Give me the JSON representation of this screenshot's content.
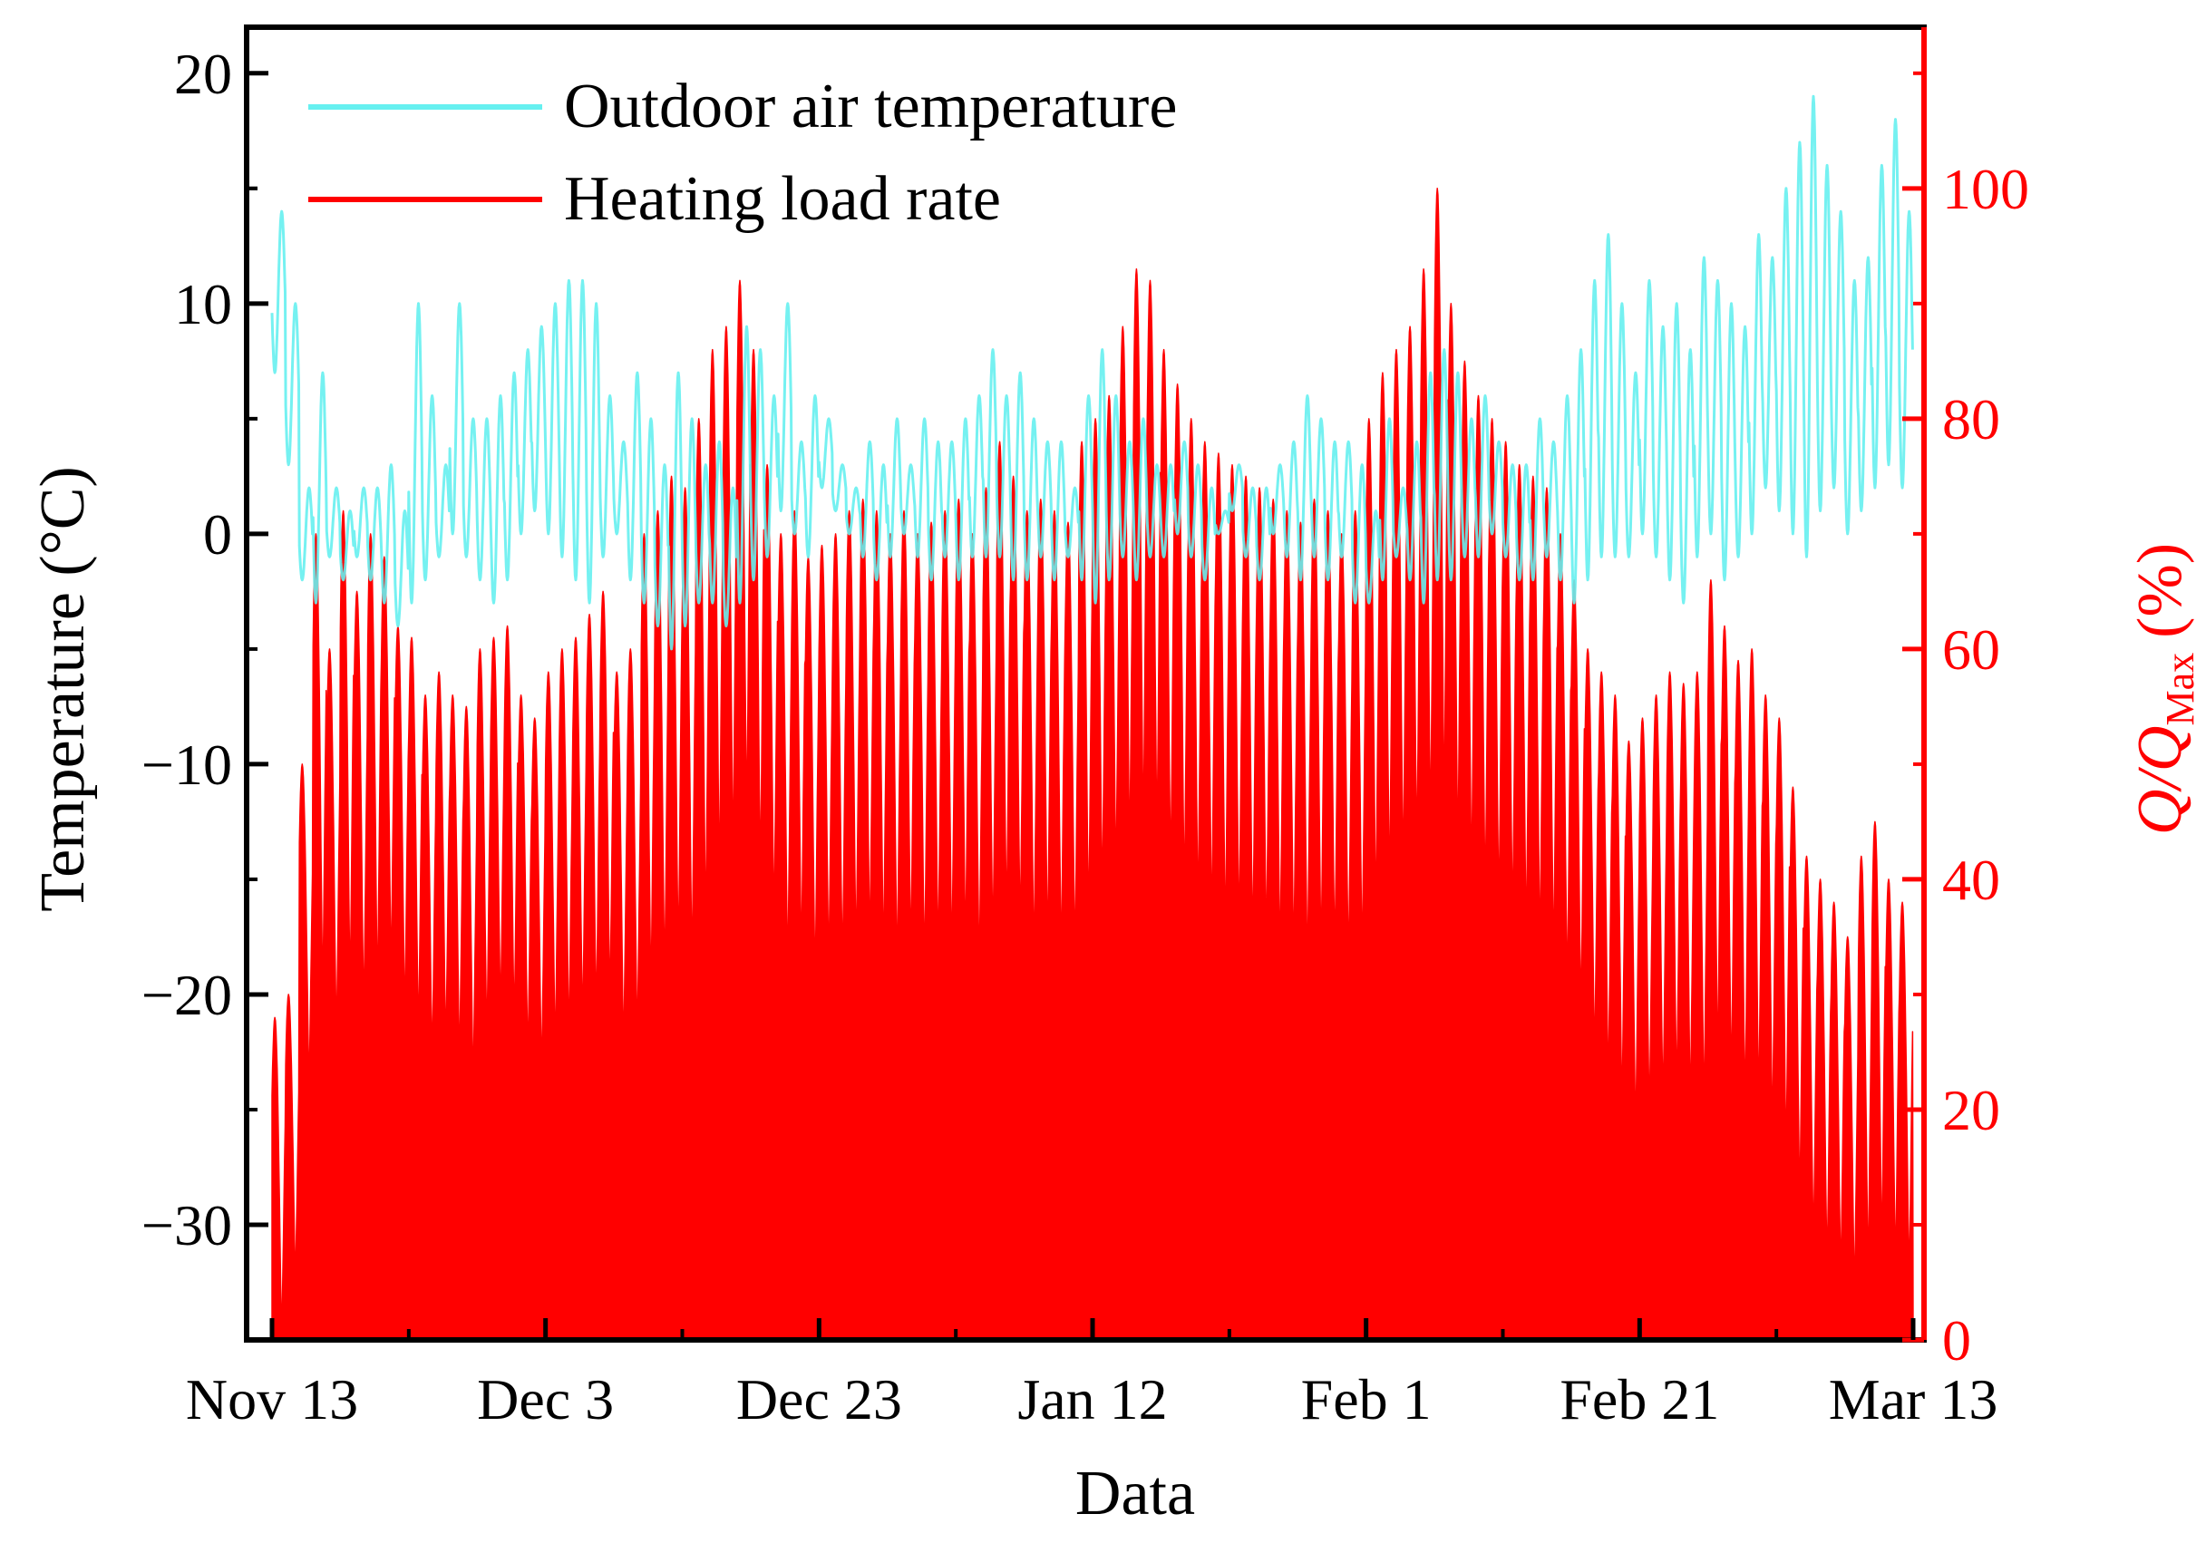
{
  "chart_data": {
    "type": "line",
    "x_axis": {
      "label": "Data",
      "tick_labels": [
        "Nov 13",
        "Dec 3",
        "Dec 23",
        "Jan 12",
        "Feb 1",
        "Feb 21",
        "Mar 13"
      ],
      "range": [
        "Nov 13",
        "Mar 13"
      ]
    },
    "y_left": {
      "label": "Temperature (°C)",
      "ticks": [
        20,
        10,
        0,
        -10,
        -20,
        -30
      ],
      "tick_labels": [
        "20",
        "10",
        "0",
        "−10",
        "−20",
        "−30"
      ],
      "range": [
        -35,
        22
      ]
    },
    "y_right": {
      "label_main": "Q/Q",
      "label_sub": "Max",
      "label_unit": "(%)",
      "ticks": [
        0,
        20,
        40,
        60,
        80,
        100
      ],
      "tick_labels": [
        "0",
        "20",
        "40",
        "60",
        "80",
        "100"
      ],
      "range": [
        0,
        114
      ]
    },
    "legend_position": "top-left",
    "grid": false,
    "series": [
      {
        "name": "Outdoor air temperature",
        "axis": "left",
        "color": "#66f0f0",
        "daily_min": [
          7,
          3,
          -2,
          -3,
          -1,
          -2,
          -1,
          -2,
          -3,
          -4,
          -3,
          -2,
          -1,
          0,
          -1,
          -2,
          -3,
          -2,
          0,
          1,
          0,
          -1,
          -2,
          -3,
          -1,
          0,
          -2,
          -3,
          -4,
          -5,
          -4,
          -3,
          -3,
          -4,
          -3,
          -2,
          -1,
          1,
          0,
          -1,
          2,
          1,
          0,
          -1,
          -2,
          -1,
          0,
          -1,
          -2,
          -1,
          -2,
          -1,
          -1,
          -1,
          -2,
          -2,
          -1,
          -2,
          -1,
          -2,
          -3,
          -2,
          -1,
          -2,
          -1,
          -1,
          0,
          -1,
          -2,
          0,
          1,
          -1,
          -2,
          0,
          -1,
          -2,
          -1,
          -2,
          -1,
          -3,
          -3,
          -2,
          -1,
          -2,
          -3,
          -2,
          -2,
          -1,
          -1,
          0,
          -1,
          -2,
          -2,
          -1,
          -2,
          -3,
          -2,
          -1,
          -1,
          -1,
          0,
          -1,
          -2,
          -3,
          -1,
          0,
          -2,
          -1,
          0,
          2,
          1,
          0,
          -1,
          1,
          2,
          0,
          1,
          2,
          3,
          2,
          0,
          -1
        ],
        "daily_max": [
          14,
          10,
          2,
          7,
          2,
          1,
          2,
          2,
          3,
          1,
          10,
          6,
          3,
          10,
          5,
          5,
          6,
          7,
          8,
          9,
          10,
          11,
          11,
          10,
          6,
          4,
          7,
          5,
          3,
          7,
          5,
          3,
          4,
          2,
          9,
          8,
          6,
          10,
          4,
          6,
          5,
          3,
          2,
          4,
          3,
          5,
          3,
          5,
          4,
          4,
          5,
          6,
          8,
          6,
          7,
          5,
          4,
          4,
          2,
          6,
          8,
          6,
          4,
          5,
          3,
          3,
          4,
          3,
          2,
          1,
          3,
          2,
          2,
          3,
          4,
          6,
          5,
          4,
          4,
          3,
          1,
          5,
          2,
          4,
          7,
          8,
          7,
          5,
          6,
          4,
          3,
          3,
          5,
          4,
          6,
          8,
          11,
          13,
          10,
          7,
          11,
          9,
          10,
          8,
          12,
          11,
          10,
          9,
          13,
          12,
          15,
          17,
          19,
          16,
          14,
          11,
          12,
          16,
          18,
          14,
          10,
          8
        ]
      },
      {
        "name": "Heating load rate",
        "axis": "right",
        "color": "#ff0000",
        "daily_peak": [
          28,
          30,
          50,
          70,
          60,
          72,
          65,
          70,
          68,
          62,
          61,
          56,
          58,
          56,
          55,
          60,
          61,
          62,
          56,
          54,
          58,
          60,
          61,
          63,
          65,
          58,
          60,
          70,
          72,
          75,
          74,
          80,
          86,
          88,
          92,
          86,
          76,
          70,
          72,
          68,
          69,
          70,
          72,
          73,
          72,
          70,
          72,
          70,
          71,
          72,
          73,
          70,
          74,
          78,
          75,
          72,
          73,
          72,
          71,
          78,
          80,
          82,
          88,
          93,
          92,
          86,
          83,
          80,
          78,
          77,
          76,
          75,
          74,
          73,
          72,
          71,
          73,
          72,
          70,
          72,
          80,
          84,
          86,
          88,
          93,
          100,
          90,
          85,
          82,
          80,
          78,
          76,
          75,
          74,
          70,
          66,
          60,
          58,
          56,
          52,
          54,
          56,
          58,
          57,
          58,
          66,
          62,
          59,
          60,
          56,
          54,
          48,
          42,
          40,
          38,
          35,
          42,
          45,
          40,
          38,
          32,
          27
        ],
        "daily_min": [
          0,
          5,
          22,
          30,
          26,
          30,
          28,
          30,
          32,
          28,
          26,
          24,
          25,
          24,
          22,
          26,
          28,
          27,
          24,
          23,
          25,
          26,
          27,
          28,
          29,
          25,
          26,
          30,
          31,
          33,
          32,
          36,
          40,
          42,
          45,
          40,
          36,
          32,
          33,
          31,
          32,
          32,
          33,
          34,
          33,
          32,
          33,
          32,
          33,
          33,
          34,
          32,
          34,
          36,
          35,
          33,
          34,
          33,
          33,
          36,
          38,
          40,
          42,
          44,
          43,
          40,
          38,
          37,
          36,
          35,
          35,
          34,
          34,
          33,
          33,
          32,
          33,
          33,
          32,
          33,
          37,
          39,
          40,
          42,
          44,
          46,
          42,
          40,
          38,
          37,
          36,
          35,
          34,
          33,
          30,
          28,
          24,
          22,
          20,
          18,
          19,
          20,
          21,
          20,
          20,
          24,
          22,
          20,
          20,
          18,
          16,
          12,
          8,
          6,
          5,
          4,
          6,
          8,
          6,
          5,
          3,
          2
        ]
      }
    ]
  }
}
